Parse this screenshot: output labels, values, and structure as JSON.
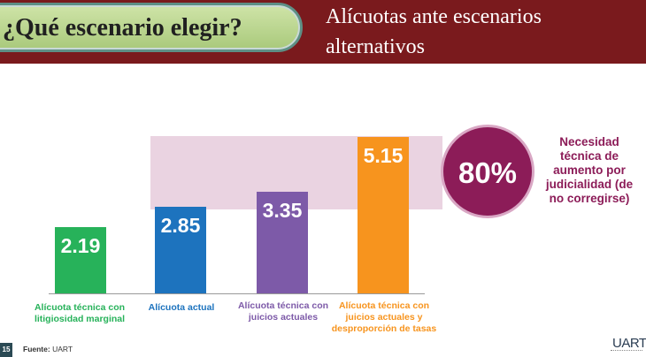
{
  "header": {
    "title": "¿Qué escenario elegir?",
    "subtitle": "Alícuotas ante escenarios alternativos"
  },
  "chart_data": {
    "type": "bar",
    "categories": [
      "Alícuota técnica con litigiosidad marginal",
      "Alícuota actual",
      "Alícuota técnica con juicios actuales",
      "Alícuota técnica con juicios actuales y desproporción de tasas"
    ],
    "values": [
      2.19,
      2.85,
      3.35,
      5.15
    ],
    "value_labels": [
      "2.19",
      "2.85",
      "3.35",
      "5.15"
    ],
    "colors": [
      "#27b25a",
      "#1d73be",
      "#7d5aa8",
      "#f7941e"
    ],
    "ylim": [
      0,
      5.6
    ]
  },
  "highlight": {
    "value": "80%",
    "note": "Necesidad técnica de aumento por judicialidad (de no corregirse)",
    "color": "#8c1c58"
  },
  "footer": {
    "page_number": "15",
    "source_label": "Fuente:",
    "source_value": "UART",
    "logo": "UART"
  }
}
